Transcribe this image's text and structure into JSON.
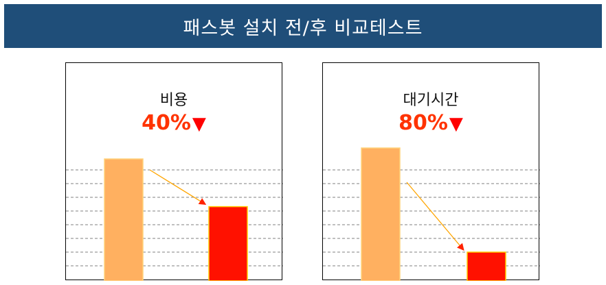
{
  "header": {
    "title": "패스봇 설치 전/후 비교테스트"
  },
  "colors": {
    "header_bg": "#1f4e79",
    "before_bar": "#ffb060",
    "after_bar": "#ff1100",
    "badge_text": "#ff3300",
    "arrow": "#ffa500"
  },
  "panels": [
    {
      "title": "비용",
      "badge_value": "40%",
      "badge_icon": "down-triangle-icon"
    },
    {
      "title": "대기시간",
      "badge_value": "80%",
      "badge_icon": "down-triangle-icon"
    }
  ],
  "chart_data": [
    {
      "type": "bar",
      "title": "비용",
      "categories": [
        "",
        ""
      ],
      "series": [
        {
          "values": [
            100,
            60
          ]
        }
      ],
      "ylim": [
        0,
        100
      ],
      "grid": true,
      "annotation": "40%▼"
    },
    {
      "type": "bar",
      "title": "대기시간",
      "categories": [
        "",
        ""
      ],
      "series": [
        {
          "values": [
            100,
            20
          ]
        }
      ],
      "ylim": [
        0,
        100
      ],
      "grid": true,
      "annotation": "80%▼"
    }
  ]
}
